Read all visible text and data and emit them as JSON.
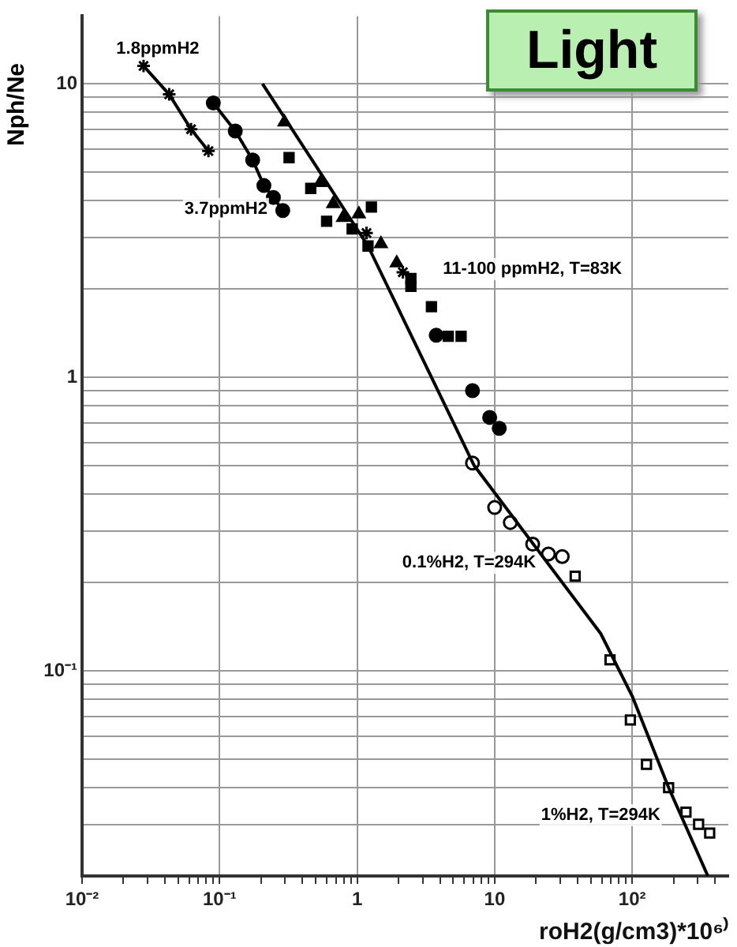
{
  "chart_data": {
    "type": "scatter",
    "title": "Light",
    "xlabel": "roH2(g/cm3)*10⁶⁾",
    "ylabel": "Nph/Ne",
    "log": "xy",
    "grid": true,
    "legend": false,
    "xlim": [
      0.01,
      500
    ],
    "ylim": [
      0.02,
      17
    ],
    "xticks": [
      {
        "value": 0.01,
        "label": "10⁻²"
      },
      {
        "value": 0.02,
        "label": null
      },
      {
        "value": 0.03,
        "label": null
      },
      {
        "value": 0.04,
        "label": null
      },
      {
        "value": 0.05,
        "label": null
      },
      {
        "value": 0.06,
        "label": null
      },
      {
        "value": 0.07,
        "label": null
      },
      {
        "value": 0.08,
        "label": null
      },
      {
        "value": 0.09,
        "label": null
      },
      {
        "value": 0.1,
        "label": "10⁻¹"
      },
      {
        "value": 0.2,
        "label": null
      },
      {
        "value": 0.3,
        "label": null
      },
      {
        "value": 0.4,
        "label": null
      },
      {
        "value": 0.5,
        "label": null
      },
      {
        "value": 0.6,
        "label": null
      },
      {
        "value": 0.7,
        "label": null
      },
      {
        "value": 0.8,
        "label": null
      },
      {
        "value": 0.9,
        "label": null
      },
      1,
      {
        "value": 2,
        "label": null
      },
      {
        "value": 3,
        "label": null
      },
      {
        "value": 4,
        "label": null
      },
      {
        "value": 5,
        "label": null
      },
      {
        "value": 6,
        "label": null
      },
      {
        "value": 7,
        "label": null
      },
      {
        "value": 8,
        "label": null
      },
      {
        "value": 9,
        "label": null
      },
      10,
      {
        "value": 20,
        "label": null
      },
      {
        "value": 30,
        "label": null
      },
      {
        "value": 40,
        "label": null
      },
      {
        "value": 50,
        "label": null
      },
      {
        "value": 60,
        "label": null
      },
      {
        "value": 70,
        "label": null
      },
      {
        "value": 80,
        "label": null
      },
      {
        "value": 90,
        "label": null
      },
      {
        "value": 100,
        "label": "10²"
      },
      {
        "value": 200,
        "label": null
      },
      {
        "value": 300,
        "label": null
      },
      {
        "value": 400,
        "label": null
      }
    ],
    "yticks": [
      {
        "value": 0.03,
        "label": null
      },
      {
        "value": 0.04,
        "label": null
      },
      {
        "value": 0.05,
        "label": null
      },
      {
        "value": 0.06,
        "label": null
      },
      {
        "value": 0.07,
        "label": null
      },
      {
        "value": 0.08,
        "label": null
      },
      {
        "value": 0.09,
        "label": null
      },
      {
        "value": 0.1,
        "label": "10⁻¹"
      },
      {
        "value": 0.2,
        "label": null
      },
      {
        "value": 0.3,
        "label": null
      },
      {
        "value": 0.4,
        "label": null
      },
      {
        "value": 0.5,
        "label": null
      },
      {
        "value": 0.6,
        "label": null
      },
      {
        "value": 0.7,
        "label": null
      },
      {
        "value": 0.8,
        "label": null
      },
      {
        "value": 0.9,
        "label": null
      },
      1,
      {
        "value": 2,
        "label": null
      },
      {
        "value": 3,
        "label": null
      },
      {
        "value": 4,
        "label": null
      },
      {
        "value": 5,
        "label": null
      },
      {
        "value": 6,
        "label": null
      },
      {
        "value": 7,
        "label": null
      },
      {
        "value": 8,
        "label": null
      },
      {
        "value": 9,
        "label": null
      },
      10
    ],
    "series": [
      {
        "type": "line",
        "name": "1.8ppmH2",
        "marker": "cross",
        "color": "#000000",
        "x": [
          0.028,
          0.043,
          0.062,
          0.083
        ],
        "values": [
          11.5,
          9.2,
          7.0,
          5.9
        ]
      },
      {
        "type": "line",
        "name": "3.7ppmH2",
        "marker": "circle",
        "color": "#000000",
        "x": [
          0.09,
          0.13,
          0.174,
          0.21,
          0.246,
          0.288
        ],
        "values": [
          8.6,
          6.9,
          5.5,
          4.5,
          4.1,
          3.7
        ]
      },
      {
        "type": "line",
        "marker": "none",
        "color": "#000000",
        "x": [
          0.205,
          1.2,
          7.1,
          59,
          100,
          184,
          355
        ],
        "values": [
          10,
          2.8,
          0.5,
          0.134,
          0.082,
          0.04,
          0.02
        ]
      },
      {
        "name": "11-100 ppmH2, T=83K",
        "marker": "square",
        "color": "#000000",
        "x": [
          0.32,
          0.46,
          0.6,
          0.92,
          1.27,
          1.2,
          2.46,
          2.46,
          3.47,
          4.6,
          5.7
        ],
        "values": [
          5.6,
          4.4,
          3.4,
          3.2,
          3.8,
          2.8,
          2.17,
          2.04,
          1.74,
          1.38,
          1.38
        ]
      },
      {
        "marker": "triangle",
        "color": "#000000",
        "x": [
          0.296,
          0.54,
          0.67,
          0.79,
          1.03,
          1.49,
          1.94
        ],
        "values": [
          7.4,
          4.6,
          3.9,
          3.5,
          3.6,
          2.85,
          2.45
        ]
      },
      {
        "marker": "cross",
        "color": "#000000",
        "x": [
          1.17,
          2.15
        ],
        "values": [
          3.1,
          2.28
        ]
      },
      {
        "marker": "circle",
        "color": "#000000",
        "x": [
          3.76,
          6.9,
          9.2,
          10.8
        ],
        "values": [
          1.39,
          0.9,
          0.73,
          0.67
        ]
      },
      {
        "name": "0.1%H2, T=294K",
        "marker": "circle",
        "color": "#000000",
        "x": [
          6.9,
          10,
          13,
          18.9,
          24.6,
          31
        ],
        "values": [
          0.51,
          0.36,
          0.32,
          0.27,
          0.25,
          0.245
        ]
      },
      {
        "name": "1%H2, T=294K",
        "marker": "square",
        "color": "#000000",
        "x": [
          38.5,
          69,
          97,
          127,
          184,
          246,
          304,
          366
        ],
        "values": [
          0.21,
          0.109,
          0.068,
          0.048,
          0.04,
          0.033,
          0.03,
          0.028
        ]
      }
    ]
  }
}
